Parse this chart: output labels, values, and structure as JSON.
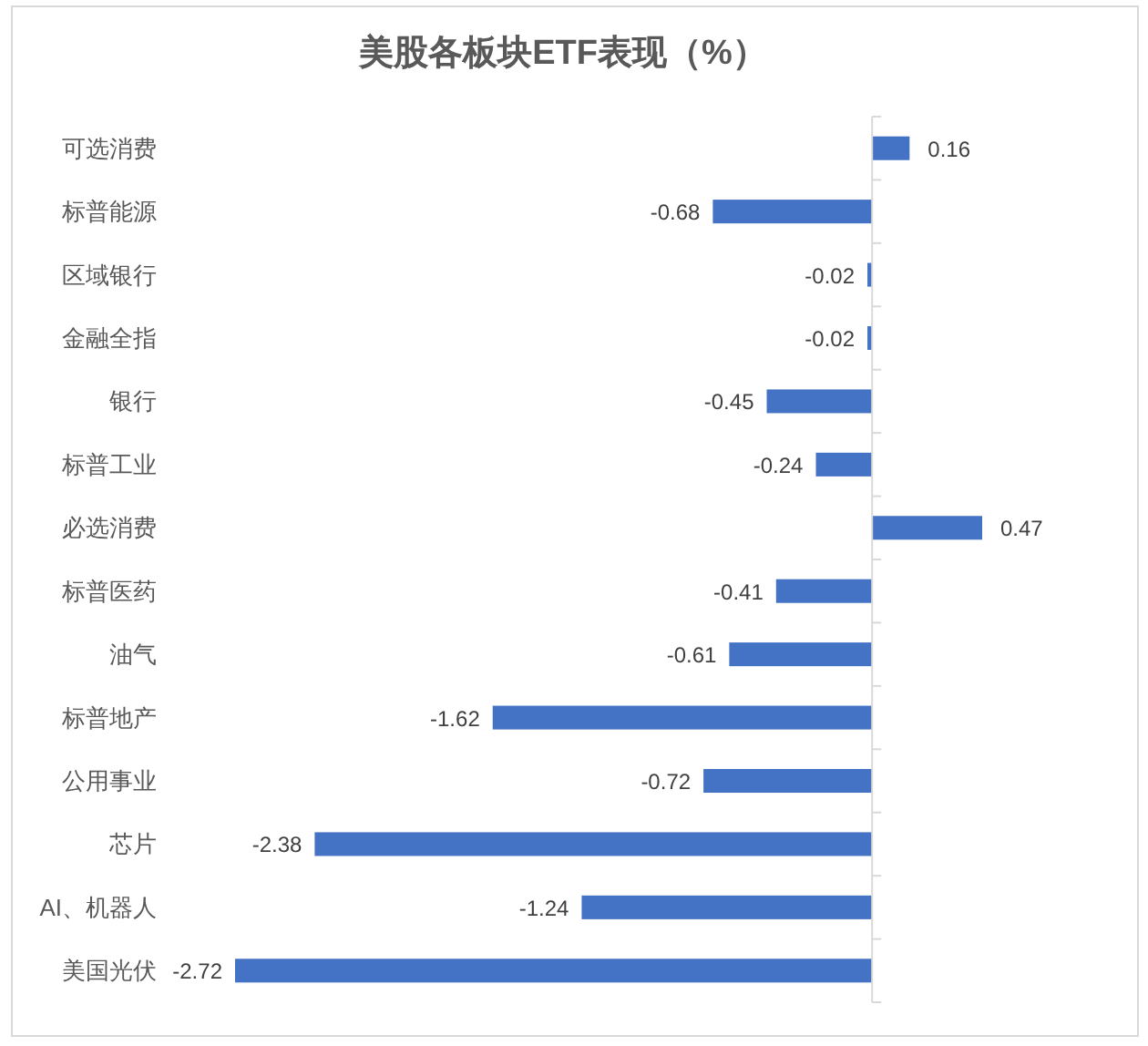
{
  "chart_data": {
    "type": "bar",
    "orientation": "horizontal",
    "title": "美股各板块ETF表现（%）",
    "categories": [
      "可选消费",
      "标普能源",
      "区域银行",
      "金融全指",
      "银行",
      "标普工业",
      "必选消费",
      "标普医药",
      "油气",
      "标普地产",
      "公用事业",
      "芯片",
      "AI、机器人",
      "美国光伏"
    ],
    "values": [
      0.16,
      -0.68,
      -0.02,
      -0.02,
      -0.45,
      -0.24,
      0.47,
      -0.41,
      -0.61,
      -1.62,
      -0.72,
      -2.38,
      -1.24,
      -2.72
    ],
    "color": "#4472c4",
    "data_labels": true
  }
}
